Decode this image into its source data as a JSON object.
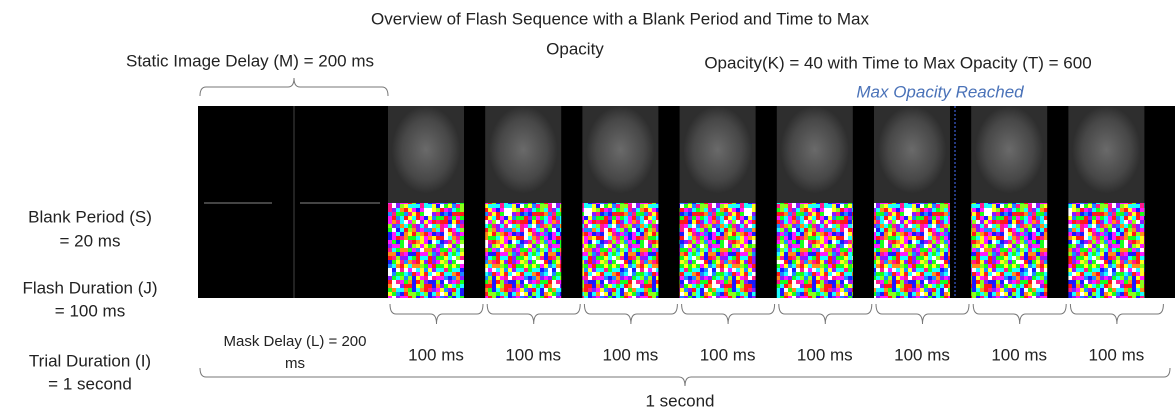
{
  "title_lines": [
    "Overview of Flash Sequence with a Blank Period and Time to Max",
    "Opacity"
  ],
  "static_delay": "Static Image Delay (M) = 200 ms",
  "opacity_setting": "Opacity(K) = 40 with Time to Max Opacity (T) = 600",
  "max_opacity": "Max Opacity Reached",
  "blank_period": [
    "Blank Period (S)",
    "= 20 ms"
  ],
  "flash_duration": [
    "Flash Duration (J)",
    "= 100 ms"
  ],
  "trial_duration": [
    "Trial Duration (I)",
    "= 1 second"
  ],
  "mask_delay": [
    "Mask Delay (L) = 200",
    "ms"
  ],
  "frame_durations": [
    "100 ms",
    "100 ms",
    "100 ms",
    "100 ms",
    "100 ms",
    "100 ms",
    "100 ms",
    "100 ms"
  ],
  "total": "1 second"
}
